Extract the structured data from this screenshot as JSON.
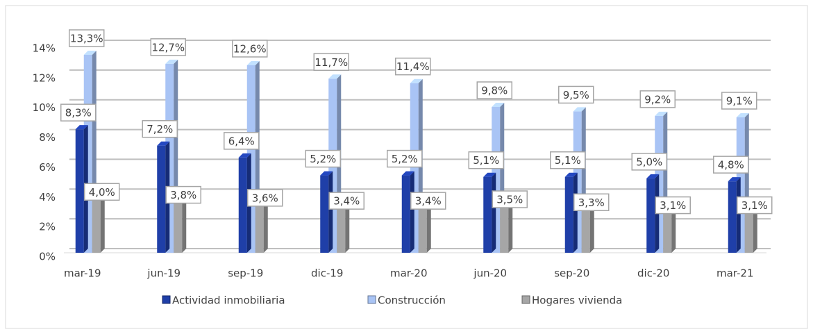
{
  "chart_data": {
    "type": "bar3d",
    "categories": [
      "mar-19",
      "jun-19",
      "sep-19",
      "dic-19",
      "mar-20",
      "jun-20",
      "sep-20",
      "dic-20",
      "mar-21"
    ],
    "series": [
      {
        "name": "Actividad inmobiliaria",
        "color": "#1f3fa8",
        "values": [
          8.3,
          7.2,
          6.4,
          5.2,
          5.2,
          5.1,
          5.1,
          5.0,
          4.8
        ],
        "value_labels": [
          "8,3%",
          "7,2%",
          "6,4%",
          "5,2%",
          "5,2%",
          "5,1%",
          "5,1%",
          "5,0%",
          "4,8%"
        ]
      },
      {
        "name": "Construcción",
        "color": "#a9c4f5",
        "values": [
          13.3,
          12.7,
          12.6,
          11.7,
          11.4,
          9.8,
          9.5,
          9.2,
          9.1
        ],
        "value_labels": [
          "13,3%",
          "12,7%",
          "12,6%",
          "11,7%",
          "11,4%",
          "9,8%",
          "9,5%",
          "9,2%",
          "9,1%"
        ]
      },
      {
        "name": "Hogares vivienda",
        "color": "#a6a6a6",
        "values": [
          4.0,
          3.8,
          3.6,
          3.4,
          3.4,
          3.5,
          3.3,
          3.1,
          3.1
        ],
        "value_labels": [
          "4,0%",
          "3,8%",
          "3,6%",
          "3,4%",
          "3,4%",
          "3,5%",
          "3,3%",
          "3,1%",
          "3,1%"
        ]
      }
    ],
    "ylim": [
      0,
      14
    ],
    "yticks": [
      {
        "value": 0,
        "label": "0%"
      },
      {
        "value": 2,
        "label": "2%"
      },
      {
        "value": 4,
        "label": "4%"
      },
      {
        "value": 6,
        "label": "6%"
      },
      {
        "value": 8,
        "label": "8%"
      },
      {
        "value": 10,
        "label": "10%"
      },
      {
        "value": 12,
        "label": "12%"
      },
      {
        "value": 14,
        "label": "14%"
      }
    ],
    "grid": true,
    "legend": "bottom"
  }
}
